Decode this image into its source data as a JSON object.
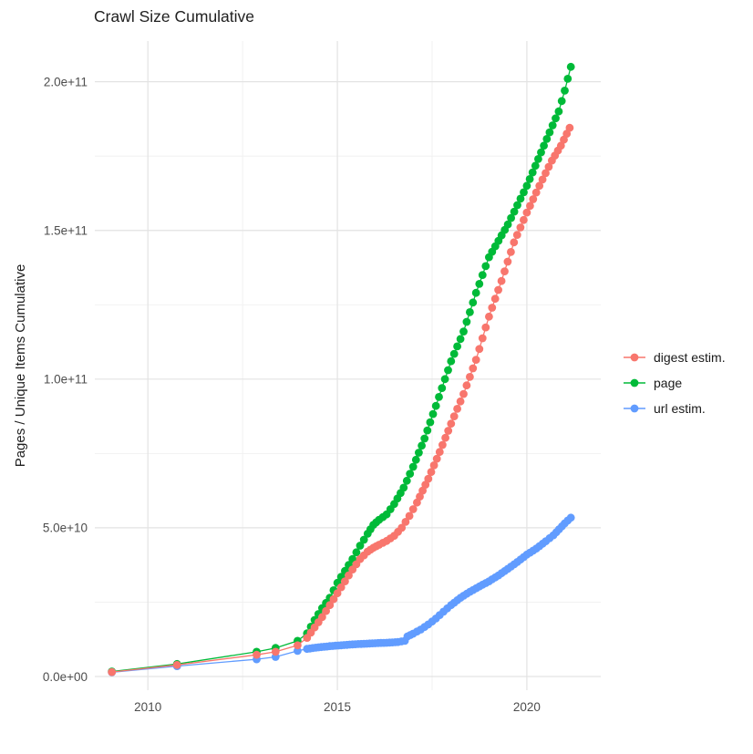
{
  "window": {
    "background": "#ffffff"
  },
  "chart_data": {
    "type": "scatter",
    "title": "Crawl Size Cumulative",
    "xlabel": "",
    "ylabel": "Pages / Unique Items Cumulative",
    "legend_position": "right",
    "grid": true,
    "xlim": [
      2008.6,
      2021.95
    ],
    "ylim": [
      0,
      210000000000.0
    ],
    "x_ticks": [
      {
        "value": 2010,
        "label": "2010"
      },
      {
        "value": 2015,
        "label": "2015"
      },
      {
        "value": 2020,
        "label": "2020"
      }
    ],
    "x_minor_ticks": [
      2012.5,
      2017.5
    ],
    "y_ticks": [
      {
        "value": 0,
        "label": "0.0e+00"
      },
      {
        "value": 50000000000.0,
        "label": "5.0e+10"
      },
      {
        "value": 100000000000.0,
        "label": "1.0e+11"
      },
      {
        "value": 150000000000.0,
        "label": "1.5e+11"
      },
      {
        "value": 200000000000.0,
        "label": "2.0e+11"
      }
    ],
    "y_minor_ticks": [
      25000000000.0,
      75000000000.0,
      125000000000.0,
      175000000000.0
    ],
    "dense_from": 2014.15,
    "sample_step_years": 0.085,
    "series": [
      {
        "name": "digest estim.",
        "color": "#F8766D",
        "points": [
          [
            2009.05,
            1500000000.0
          ],
          [
            2010.77,
            3900000000.0
          ],
          [
            2012.87,
            7300000000.0
          ],
          [
            2013.37,
            8300000000.0
          ],
          [
            2013.95,
            10500000000.0
          ],
          [
            2014.2,
            13000000000.0
          ],
          [
            2014.4,
            16500000000.0
          ],
          [
            2014.6,
            20000000000.0
          ],
          [
            2014.8,
            24000000000.0
          ],
          [
            2015.0,
            28000000000.0
          ],
          [
            2015.2,
            32000000000.0
          ],
          [
            2015.4,
            36000000000.0
          ],
          [
            2015.6,
            39500000000.0
          ],
          [
            2015.8,
            42000000000.0
          ],
          [
            2015.95,
            43300000000.0
          ],
          [
            2016.1,
            44300000000.0
          ],
          [
            2016.3,
            45600000000.0
          ],
          [
            2016.5,
            47300000000.0
          ],
          [
            2016.7,
            50000000000.0
          ],
          [
            2016.9,
            54000000000.0
          ],
          [
            2017.1,
            58500000000.0
          ],
          [
            2017.4,
            66500000000.0
          ],
          [
            2017.7,
            75500000000.0
          ],
          [
            2018.0,
            85000000000.0
          ],
          [
            2018.33,
            95000000000.0
          ],
          [
            2018.66,
            106500000000.0
          ],
          [
            2019.0,
            121000000000.0
          ],
          [
            2019.33,
            133000000000.0
          ],
          [
            2019.66,
            146000000000.0
          ],
          [
            2020.0,
            156000000000.0
          ],
          [
            2020.33,
            165000000000.0
          ],
          [
            2020.66,
            173500000000.0
          ],
          [
            2020.9,
            178500000000.0
          ],
          [
            2021.13,
            184500000000.0
          ]
        ]
      },
      {
        "name": "page",
        "color": "#00BA38",
        "points": [
          [
            2009.05,
            1700000000.0
          ],
          [
            2010.77,
            4200000000.0
          ],
          [
            2012.87,
            8300000000.0
          ],
          [
            2013.37,
            9600000000.0
          ],
          [
            2013.95,
            12000000000.0
          ],
          [
            2014.2,
            14500000000.0
          ],
          [
            2014.4,
            19000000000.0
          ],
          [
            2014.6,
            23000000000.0
          ],
          [
            2014.8,
            26500000000.0
          ],
          [
            2015.0,
            31500000000.0
          ],
          [
            2015.2,
            35500000000.0
          ],
          [
            2015.4,
            39500000000.0
          ],
          [
            2015.6,
            44000000000.0
          ],
          [
            2015.8,
            48000000000.0
          ],
          [
            2015.95,
            51000000000.0
          ],
          [
            2016.1,
            52700000000.0
          ],
          [
            2016.3,
            54500000000.0
          ],
          [
            2016.5,
            58000000000.0
          ],
          [
            2016.75,
            63500000000.0
          ],
          [
            2017.0,
            70500000000.0
          ],
          [
            2017.3,
            80000000000.0
          ],
          [
            2017.6,
            91000000000.0
          ],
          [
            2018.0,
            106000000000.0
          ],
          [
            2018.33,
            116000000000.0
          ],
          [
            2018.66,
            129000000000.0
          ],
          [
            2019.0,
            141000000000.0
          ],
          [
            2019.5,
            152000000000.0
          ],
          [
            2020.0,
            165000000000.0
          ],
          [
            2020.3,
            174000000000.0
          ],
          [
            2020.6,
            183000000000.0
          ],
          [
            2020.84,
            190000000000.0
          ],
          [
            2021.0,
            197000000000.0
          ],
          [
            2021.16,
            205000000000.0
          ]
        ]
      },
      {
        "name": "url estim.",
        "color": "#619CFF",
        "points": [
          [
            2009.05,
            1400000000.0
          ],
          [
            2010.77,
            3500000000.0
          ],
          [
            2012.87,
            5800000000.0
          ],
          [
            2013.37,
            6600000000.0
          ],
          [
            2013.95,
            8600000000.0
          ],
          [
            2014.2,
            9300000000.0
          ],
          [
            2014.5,
            9800000000.0
          ],
          [
            2014.8,
            10200000000.0
          ],
          [
            2015.1,
            10500000000.0
          ],
          [
            2015.4,
            10800000000.0
          ],
          [
            2015.7,
            11000000000.0
          ],
          [
            2016.0,
            11200000000.0
          ],
          [
            2016.3,
            11350000000.0
          ],
          [
            2016.6,
            11600000000.0
          ],
          [
            2016.78,
            12000000000.0
          ],
          [
            2016.85,
            13500000000.0
          ],
          [
            2017.0,
            14400000000.0
          ],
          [
            2017.2,
            15800000000.0
          ],
          [
            2017.4,
            17500000000.0
          ],
          [
            2017.6,
            19500000000.0
          ],
          [
            2017.8,
            21800000000.0
          ],
          [
            2018.0,
            24000000000.0
          ],
          [
            2018.25,
            26500000000.0
          ],
          [
            2018.5,
            28500000000.0
          ],
          [
            2018.75,
            30300000000.0
          ],
          [
            2019.0,
            32000000000.0
          ],
          [
            2019.25,
            34000000000.0
          ],
          [
            2019.5,
            36200000000.0
          ],
          [
            2019.75,
            38500000000.0
          ],
          [
            2020.0,
            41000000000.0
          ],
          [
            2020.25,
            43000000000.0
          ],
          [
            2020.5,
            45500000000.0
          ],
          [
            2020.7,
            47500000000.0
          ],
          [
            2020.85,
            49500000000.0
          ],
          [
            2021.0,
            51500000000.0
          ],
          [
            2021.16,
            53400000000.0
          ]
        ]
      }
    ]
  }
}
